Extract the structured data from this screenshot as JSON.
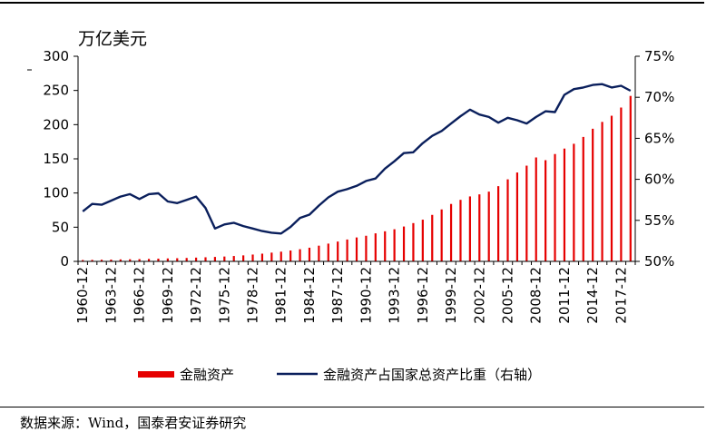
{
  "unit_label": "万亿美元",
  "source": "数据来源：Wind，国泰君安证券研究",
  "chart_data": {
    "type": "bar+line",
    "y_left": {
      "range": [
        0,
        300
      ],
      "ticks": [
        "0",
        "50",
        "100",
        "150",
        "200",
        "250",
        "300"
      ]
    },
    "y_right": {
      "range": [
        50,
        75
      ],
      "ticks": [
        "50%",
        "55%",
        "60%",
        "65%",
        "70%",
        "75%"
      ]
    },
    "x_tick_labels": [
      "1960-12",
      "1963-12",
      "1966-12",
      "1969-12",
      "1972-12",
      "1975-12",
      "1978-12",
      "1981-12",
      "1984-12",
      "1987-12",
      "1990-12",
      "1993-12",
      "1996-12",
      "1999-12",
      "2002-12",
      "2005-12",
      "2008-12",
      "2011-12",
      "2014-12",
      "2017-12"
    ],
    "years": [
      1960,
      1961,
      1962,
      1963,
      1964,
      1965,
      1966,
      1967,
      1968,
      1969,
      1970,
      1971,
      1972,
      1973,
      1974,
      1975,
      1976,
      1977,
      1978,
      1979,
      1980,
      1981,
      1982,
      1983,
      1984,
      1985,
      1986,
      1987,
      1988,
      1989,
      1990,
      1991,
      1992,
      1993,
      1994,
      1995,
      1996,
      1997,
      1998,
      1999,
      2000,
      2001,
      2002,
      2003,
      2004,
      2005,
      2006,
      2007,
      2008,
      2009,
      2010,
      2011,
      2012,
      2013,
      2014,
      2015,
      2016,
      2017,
      2018
    ],
    "series": [
      {
        "name": "金融资产",
        "axis": "left",
        "style": "bar",
        "color": "#e60000",
        "values": [
          2,
          2.2,
          2.4,
          2.6,
          2.9,
          3.1,
          3.3,
          3.6,
          4,
          4.3,
          4.6,
          5,
          5.5,
          6,
          6.5,
          7.1,
          7.9,
          8.8,
          10,
          11.3,
          12.8,
          14.2,
          15.9,
          17.8,
          20,
          23,
          26,
          29,
          32,
          35,
          37.5,
          41,
          44,
          47,
          51,
          56,
          61,
          68,
          76,
          84,
          90,
          95,
          98,
          102,
          110,
          120,
          130,
          140,
          152,
          148,
          157,
          165,
          172,
          182,
          194,
          204,
          213,
          225,
          242
        ]
      },
      {
        "name": "金融资产占国家总资产比重（右轴）",
        "axis": "right",
        "style": "line",
        "color": "#0a1f5c",
        "values": [
          56.1,
          57,
          56.9,
          57.4,
          57.9,
          58.2,
          57.6,
          58.2,
          58.3,
          57.3,
          57.1,
          57.5,
          57.9,
          56.5,
          54,
          54.5,
          54.7,
          54.3,
          54,
          53.7,
          53.5,
          53.4,
          54.2,
          55.3,
          55.7,
          56.8,
          57.8,
          58.5,
          58.8,
          59.2,
          59.8,
          60.1,
          61.3,
          62.2,
          63.2,
          63.3,
          64.4,
          65.3,
          65.9,
          66.8,
          67.7,
          68.5,
          67.9,
          67.6,
          66.9,
          67.5,
          67.2,
          66.8,
          67.6,
          68.3,
          68.2,
          70.3,
          71,
          71.2,
          71.5,
          71.6,
          71.2,
          71.4,
          70.8
        ]
      }
    ],
    "legend": {
      "placement": "bottom",
      "items": [
        "金融资产",
        "金融资产占国家总资产比重（右轴）"
      ]
    }
  }
}
